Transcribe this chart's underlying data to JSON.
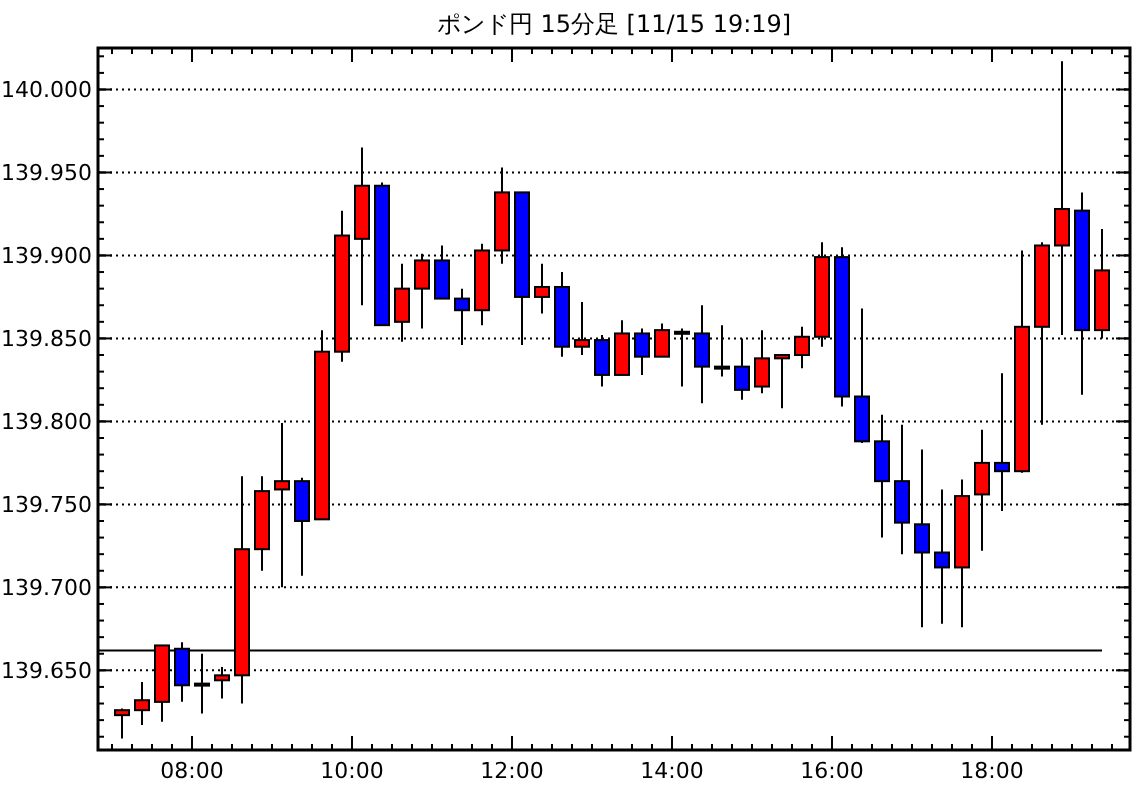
{
  "chart_data": {
    "type": "candlestick",
    "title": "ポンド円 15分足 [11/15 19:19]",
    "x": [
      7.125,
      7.375,
      7.625,
      7.875,
      8.125,
      8.375,
      8.625,
      8.875,
      9.125,
      9.375,
      9.625,
      9.875,
      10.125,
      10.375,
      10.625,
      10.875,
      11.125,
      11.375,
      11.625,
      11.875,
      12.125,
      12.375,
      12.625,
      12.875,
      13.125,
      13.375,
      13.625,
      13.875,
      14.125,
      14.375,
      14.625,
      14.875,
      15.125,
      15.375,
      15.625,
      15.875,
      16.125,
      16.375,
      16.625,
      16.875,
      17.125,
      17.375,
      17.625,
      17.875,
      18.125,
      18.375,
      18.625,
      18.875,
      19.125,
      19.375
    ],
    "ohlc": [
      [
        139.623,
        139.627,
        139.609,
        139.626
      ],
      [
        139.626,
        139.643,
        139.617,
        139.632
      ],
      [
        139.631,
        139.665,
        139.619,
        139.665
      ],
      [
        139.663,
        139.667,
        139.631,
        139.641
      ],
      [
        139.642,
        139.66,
        139.624,
        139.642
      ],
      [
        139.644,
        139.652,
        139.633,
        139.647
      ],
      [
        139.647,
        139.767,
        139.63,
        139.723
      ],
      [
        139.723,
        139.767,
        139.71,
        139.758
      ],
      [
        139.759,
        139.799,
        139.7,
        139.764
      ],
      [
        139.764,
        139.766,
        139.707,
        139.74
      ],
      [
        139.741,
        139.855,
        139.741,
        139.842
      ],
      [
        139.842,
        139.927,
        139.836,
        139.912
      ],
      [
        139.91,
        139.965,
        139.87,
        139.942
      ],
      [
        139.942,
        139.944,
        139.858,
        139.858
      ],
      [
        139.86,
        139.895,
        139.848,
        139.88
      ],
      [
        139.88,
        139.901,
        139.856,
        139.897
      ],
      [
        139.897,
        139.906,
        139.874,
        139.874
      ],
      [
        139.874,
        139.88,
        139.846,
        139.867
      ],
      [
        139.867,
        139.907,
        139.858,
        139.903
      ],
      [
        139.903,
        139.953,
        139.895,
        139.938
      ],
      [
        139.938,
        139.938,
        139.846,
        139.875
      ],
      [
        139.875,
        139.895,
        139.865,
        139.881
      ],
      [
        139.881,
        139.89,
        139.839,
        139.845
      ],
      [
        139.845,
        139.872,
        139.84,
        139.849
      ],
      [
        139.849,
        139.852,
        139.821,
        139.828
      ],
      [
        139.828,
        139.861,
        139.828,
        139.853
      ],
      [
        139.853,
        139.856,
        139.828,
        139.839
      ],
      [
        139.839,
        139.859,
        139.839,
        139.855
      ],
      [
        139.854,
        139.856,
        139.821,
        139.854
      ],
      [
        139.853,
        139.87,
        139.811,
        139.833
      ],
      [
        139.833,
        139.858,
        139.827,
        139.833
      ],
      [
        139.833,
        139.85,
        139.813,
        139.819
      ],
      [
        139.821,
        139.855,
        139.817,
        139.838
      ],
      [
        139.838,
        139.84,
        139.808,
        139.84
      ],
      [
        139.84,
        139.857,
        139.832,
        139.851
      ],
      [
        139.851,
        139.908,
        139.845,
        139.899
      ],
      [
        139.899,
        139.905,
        139.809,
        139.815
      ],
      [
        139.815,
        139.868,
        139.787,
        139.788
      ],
      [
        139.788,
        139.804,
        139.73,
        139.764
      ],
      [
        139.764,
        139.798,
        139.72,
        139.739
      ],
      [
        139.738,
        139.783,
        139.676,
        139.721
      ],
      [
        139.721,
        139.759,
        139.678,
        139.712
      ],
      [
        139.712,
        139.765,
        139.676,
        139.755
      ],
      [
        139.756,
        139.795,
        139.722,
        139.775
      ],
      [
        139.775,
        139.829,
        139.746,
        139.77
      ],
      [
        139.77,
        139.903,
        139.769,
        139.857
      ],
      [
        139.857,
        139.908,
        139.798,
        139.906
      ],
      [
        139.906,
        140.017,
        139.852,
        139.928
      ],
      [
        139.927,
        139.938,
        139.816,
        139.855
      ],
      [
        139.855,
        139.916,
        139.85,
        139.891
      ]
    ],
    "colors": [
      "#ff0000",
      "#ff0000",
      "#ff0000",
      "#0000ff",
      "#000000",
      "#ff0000",
      "#ff0000",
      "#ff0000",
      "#ff0000",
      "#0000ff",
      "#ff0000",
      "#ff0000",
      "#ff0000",
      "#0000ff",
      "#ff0000",
      "#ff0000",
      "#0000ff",
      "#0000ff",
      "#ff0000",
      "#ff0000",
      "#0000ff",
      "#ff0000",
      "#0000ff",
      "#ff0000",
      "#0000ff",
      "#ff0000",
      "#0000ff",
      "#ff0000",
      "#000000",
      "#0000ff",
      "#000000",
      "#0000ff",
      "#ff0000",
      "#ff0000",
      "#ff0000",
      "#ff0000",
      "#0000ff",
      "#0000ff",
      "#0000ff",
      "#0000ff",
      "#0000ff",
      "#0000ff",
      "#ff0000",
      "#ff0000",
      "#0000ff",
      "#ff0000",
      "#ff0000",
      "#ff0000",
      "#0000ff",
      "#ff0000"
    ],
    "xlim": [
      6.825,
      19.725
    ],
    "ylim": [
      139.602,
      140.025
    ],
    "xticks": [
      {
        "value": 8,
        "label": "08:00"
      },
      {
        "value": 10,
        "label": "10:00"
      },
      {
        "value": 12,
        "label": "12:00"
      },
      {
        "value": 14,
        "label": "14:00"
      },
      {
        "value": 16,
        "label": "16:00"
      },
      {
        "value": 18,
        "label": "18:00"
      }
    ],
    "yticks": [
      {
        "value": 139.65,
        "label": "139.650"
      },
      {
        "value": 139.7,
        "label": "139.700"
      },
      {
        "value": 139.75,
        "label": "139.750"
      },
      {
        "value": 139.8,
        "label": "139.800"
      },
      {
        "value": 139.85,
        "label": "139.850"
      },
      {
        "value": 139.9,
        "label": "139.900"
      },
      {
        "value": 139.95,
        "label": "139.950"
      },
      {
        "value": 140,
        "label": "140.000"
      }
    ],
    "grid": "y",
    "ref_lines": [
      {
        "axis": "y",
        "value": 139.662,
        "color": "#000000"
      }
    ]
  }
}
